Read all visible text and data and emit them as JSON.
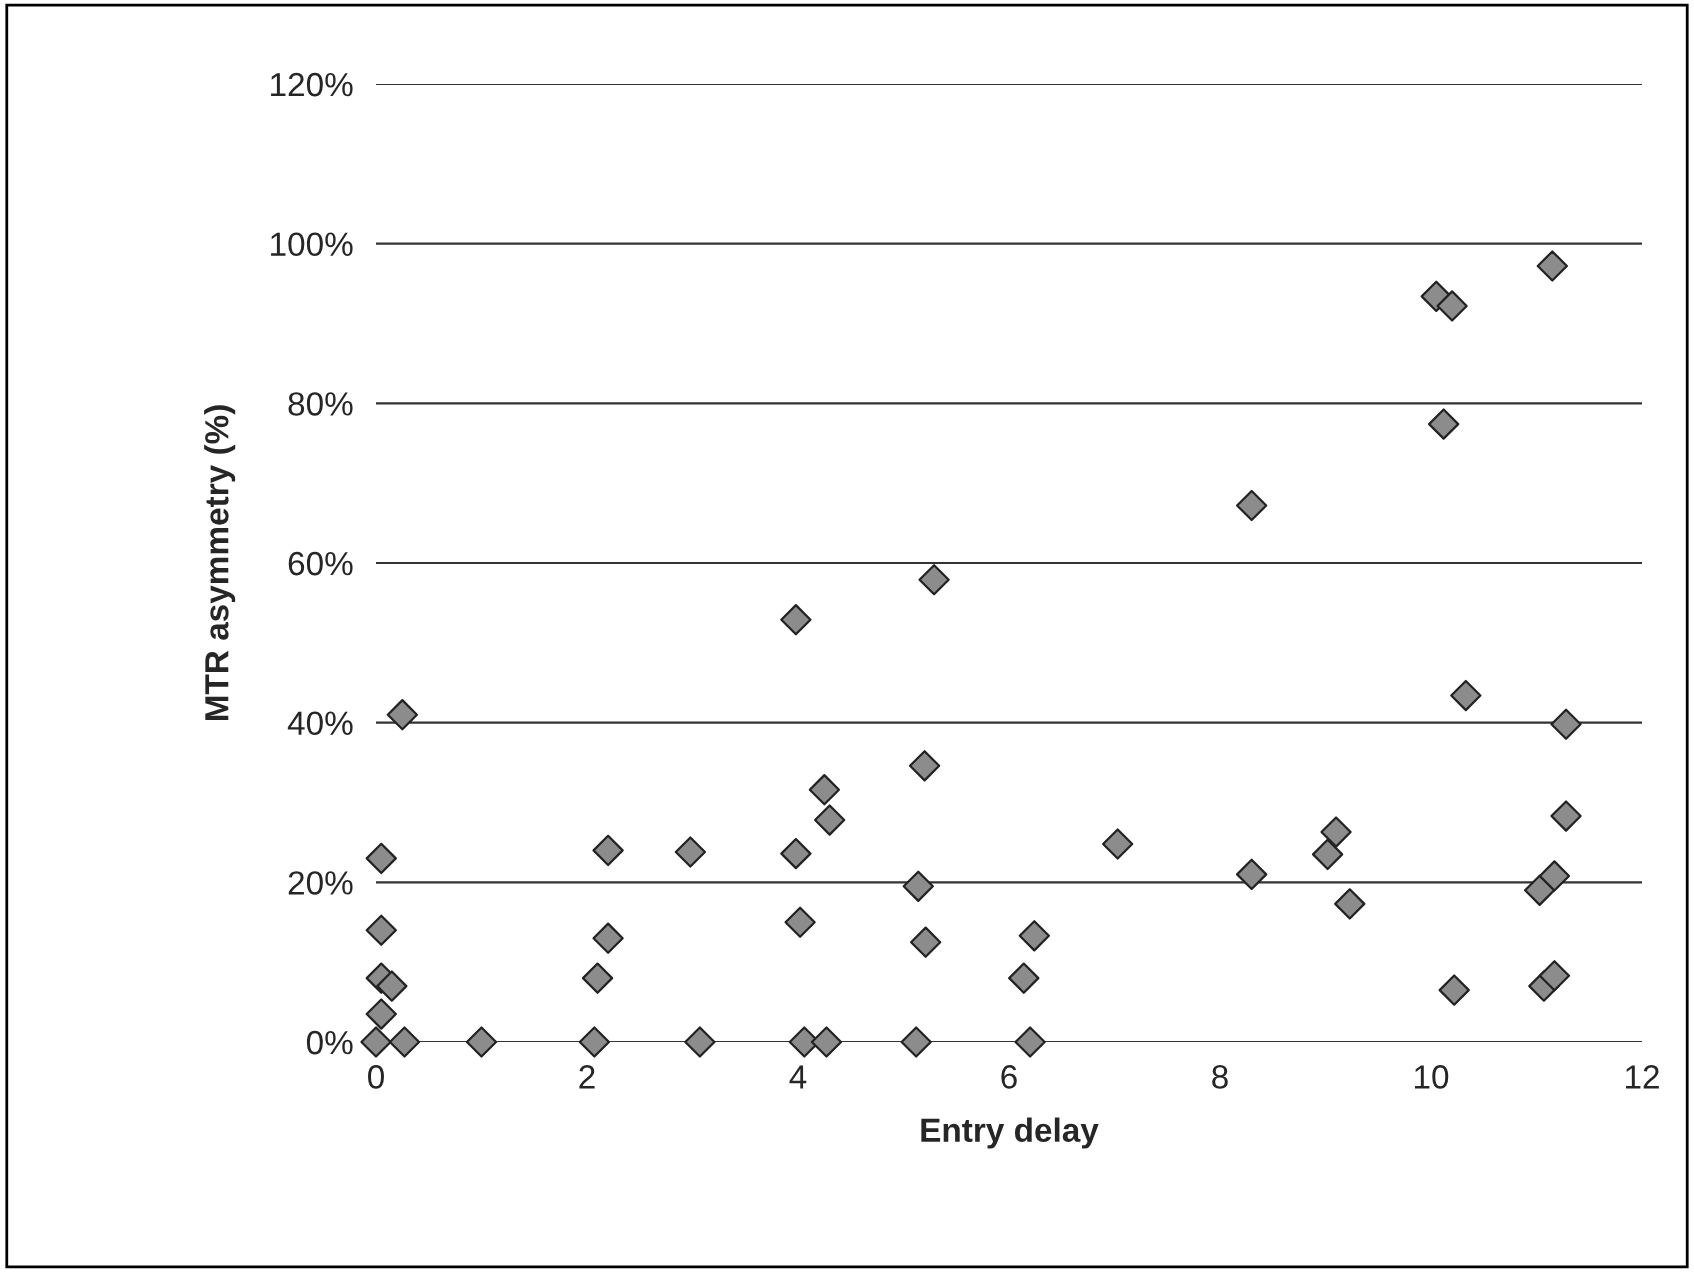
{
  "chart_data": {
    "type": "scatter",
    "xlabel": "Entry delay",
    "ylabel": "MTR asymmetry (%)",
    "xlim": [
      0,
      12
    ],
    "xticks": [
      0,
      2,
      4,
      6,
      8,
      10,
      12
    ],
    "ylim": [
      0,
      120
    ],
    "yticks": [
      {
        "value": 0,
        "label": "0%"
      },
      {
        "value": 20,
        "label": "20%"
      },
      {
        "value": 40,
        "label": "40%"
      },
      {
        "value": 60,
        "label": "60%"
      },
      {
        "value": 80,
        "label": "80%"
      },
      {
        "value": 100,
        "label": "100%"
      },
      {
        "value": 120,
        "label": "120%"
      }
    ],
    "grid": "y",
    "marker": "diamond",
    "legend": false,
    "series": [
      {
        "color": "#8c8c8c",
        "x": [
          0,
          0.05,
          0.05,
          0.05,
          0.05,
          0.15,
          0.27,
          0.25,
          1.0,
          2.07,
          2.1,
          2.2,
          2.2,
          2.98,
          3.07,
          3.98,
          3.98,
          4.02,
          4.06,
          4.25,
          4.27,
          4.3,
          5.12,
          5.14,
          5.2,
          5.21,
          5.29,
          6.14,
          6.2,
          6.24,
          7.03,
          8.3,
          8.3,
          9.02,
          9.1,
          9.23,
          10.05,
          10.2,
          10.12,
          10.33,
          10.22,
          11.03,
          11.07,
          11.17,
          11.17,
          11.28,
          11.28,
          11.15
        ],
        "values": [
          0,
          3.5,
          8,
          14,
          23,
          7,
          0,
          41,
          0,
          0,
          8,
          13,
          24,
          23.8,
          0,
          52.9,
          23.6,
          15,
          0,
          31.6,
          0,
          27.8,
          0,
          19.5,
          34.6,
          12.5,
          57.9,
          8,
          0,
          13.3,
          24.8,
          67.2,
          21,
          23.5,
          26.3,
          17.3,
          93.4,
          92.2,
          77.4,
          43.4,
          6.5,
          19,
          7,
          8.3,
          20.8,
          39.8,
          28.3,
          97.2
        ]
      }
    ]
  }
}
